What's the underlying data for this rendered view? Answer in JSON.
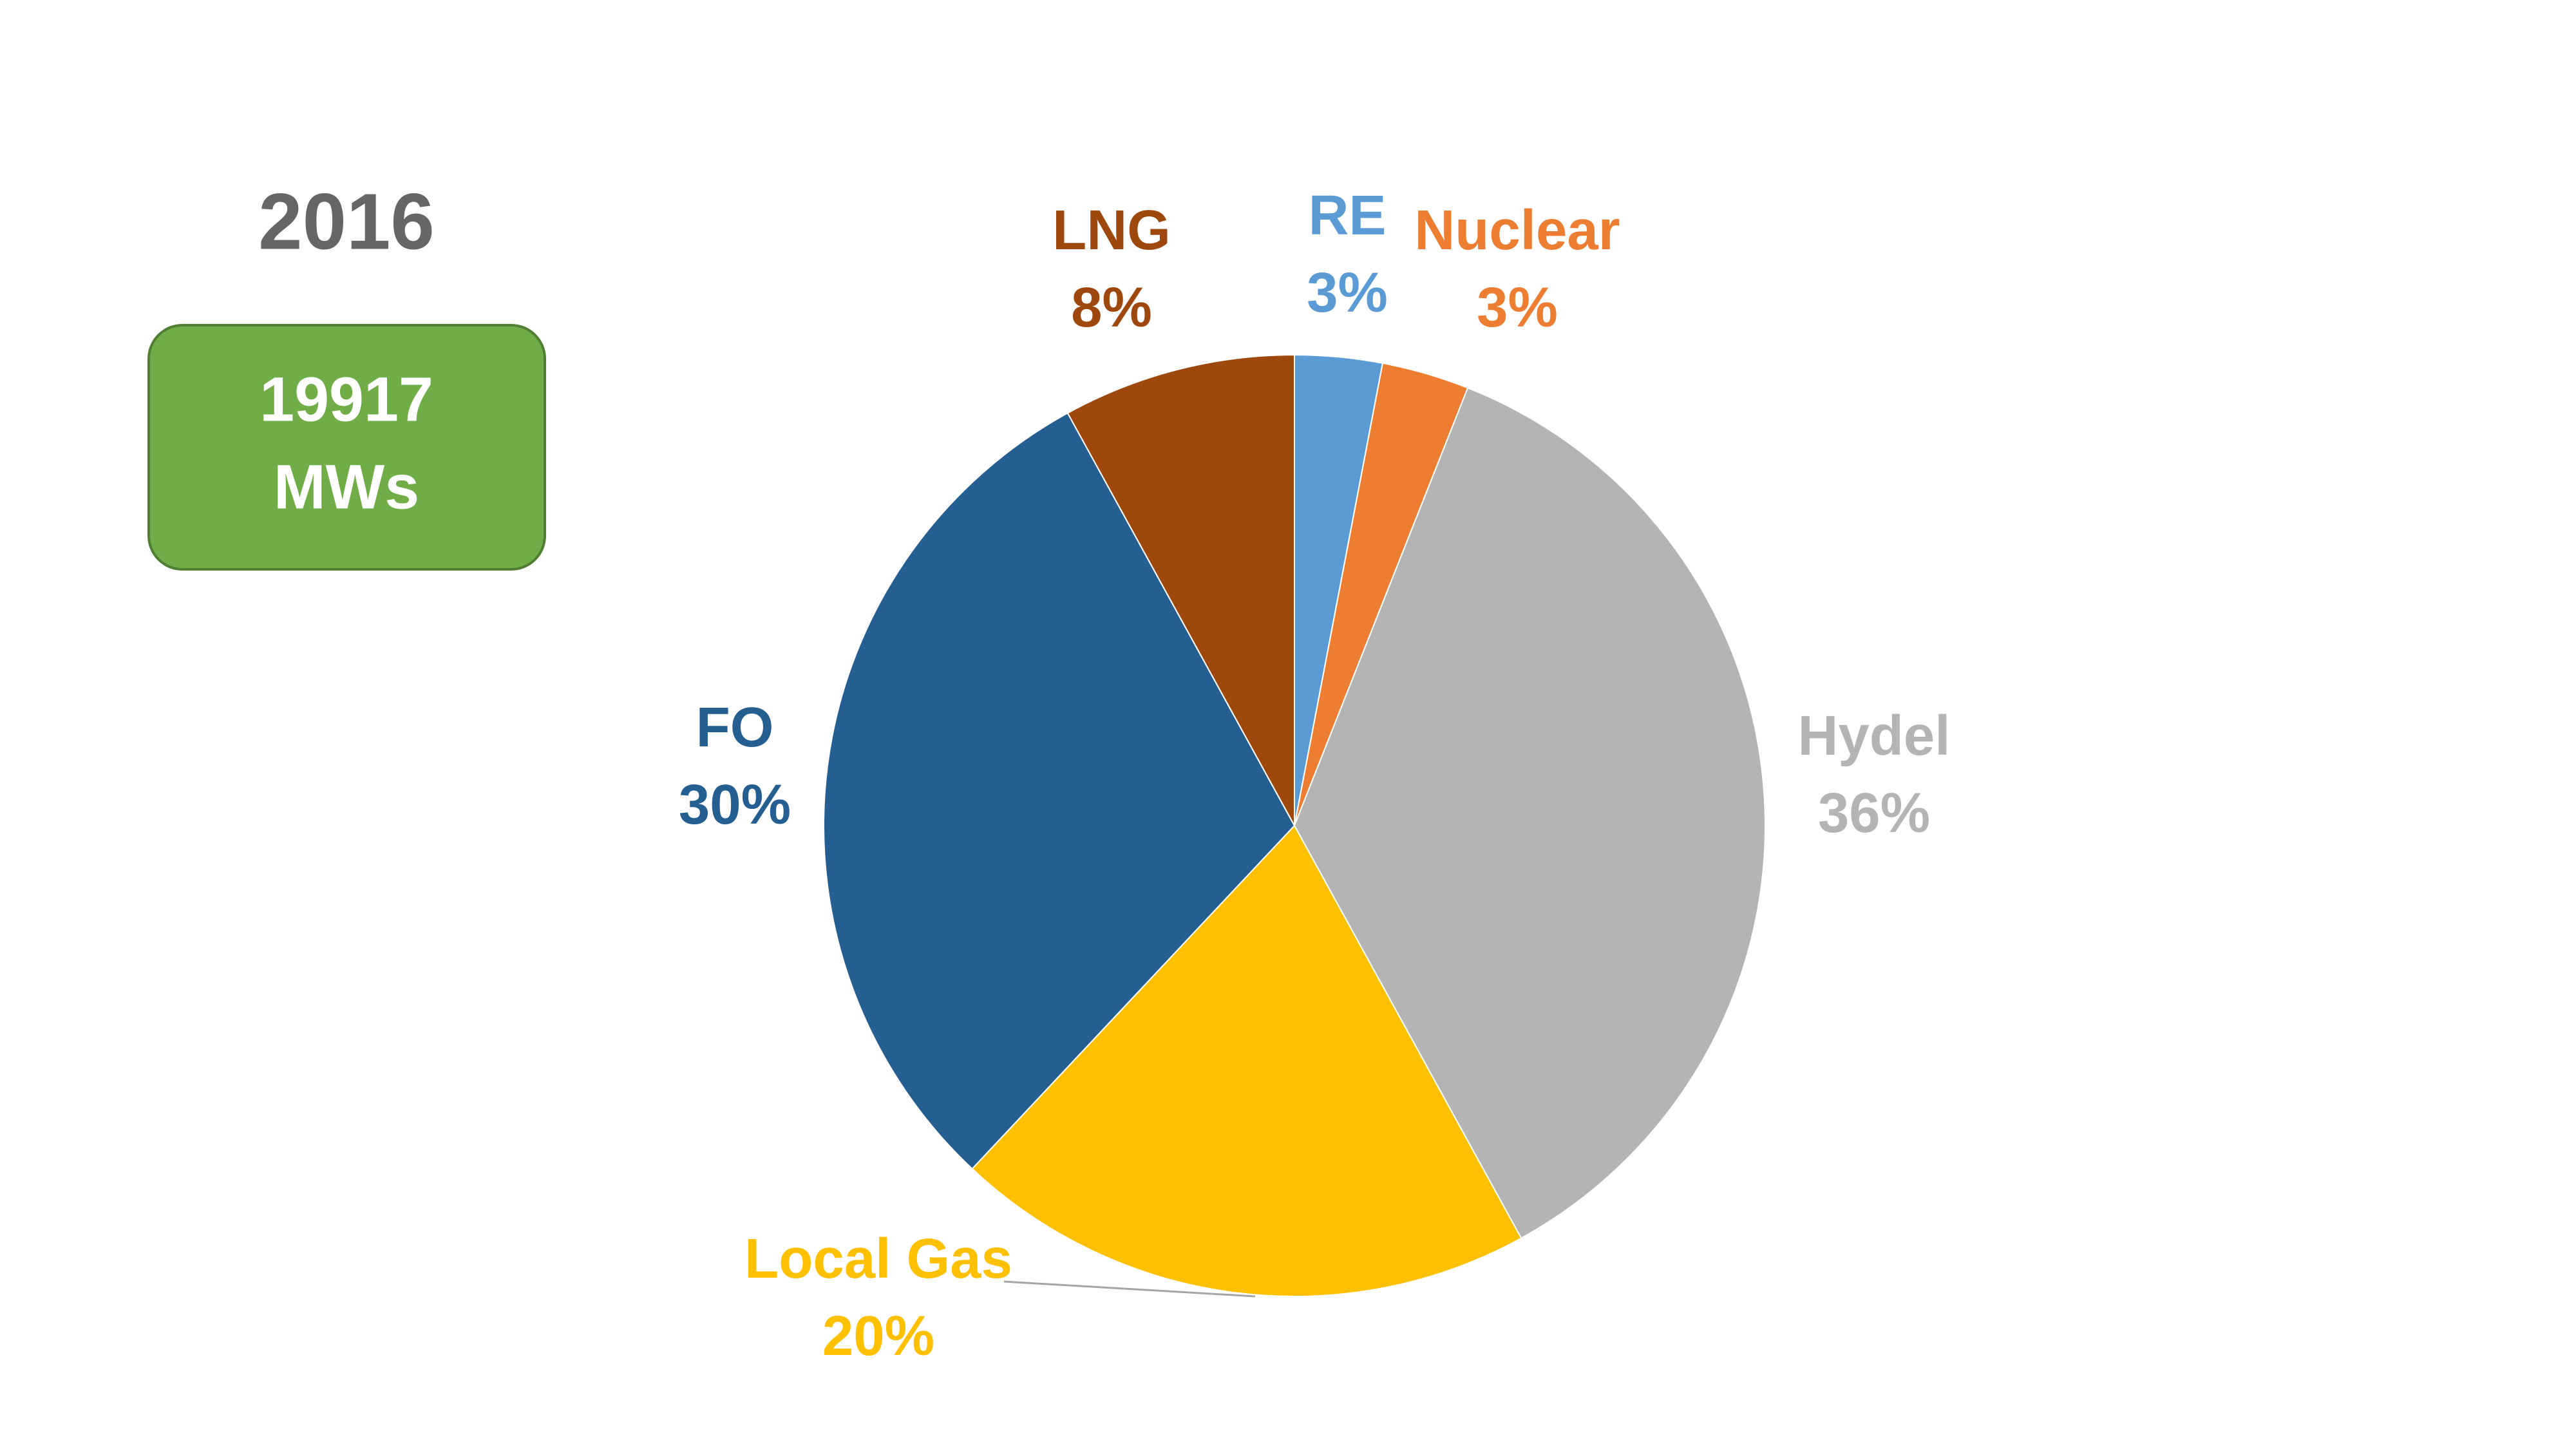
{
  "header": {
    "year": "2016",
    "badge": [
      "19917",
      "MWs"
    ]
  },
  "chart_data": {
    "type": "pie",
    "categories": [
      "RE",
      "Nuclear",
      "Hydel",
      "Local Gas",
      "FO",
      "LNG"
    ],
    "values": [
      3,
      3,
      36,
      20,
      30,
      8
    ],
    "value_labels": [
      "3%",
      "3%",
      "36%",
      "20%",
      "30%",
      "8%"
    ],
    "colors": [
      "#5b9bd5",
      "#ed7d31",
      "#b4b4b4",
      "#ffc000",
      "#255e91",
      "#9e480e"
    ]
  }
}
